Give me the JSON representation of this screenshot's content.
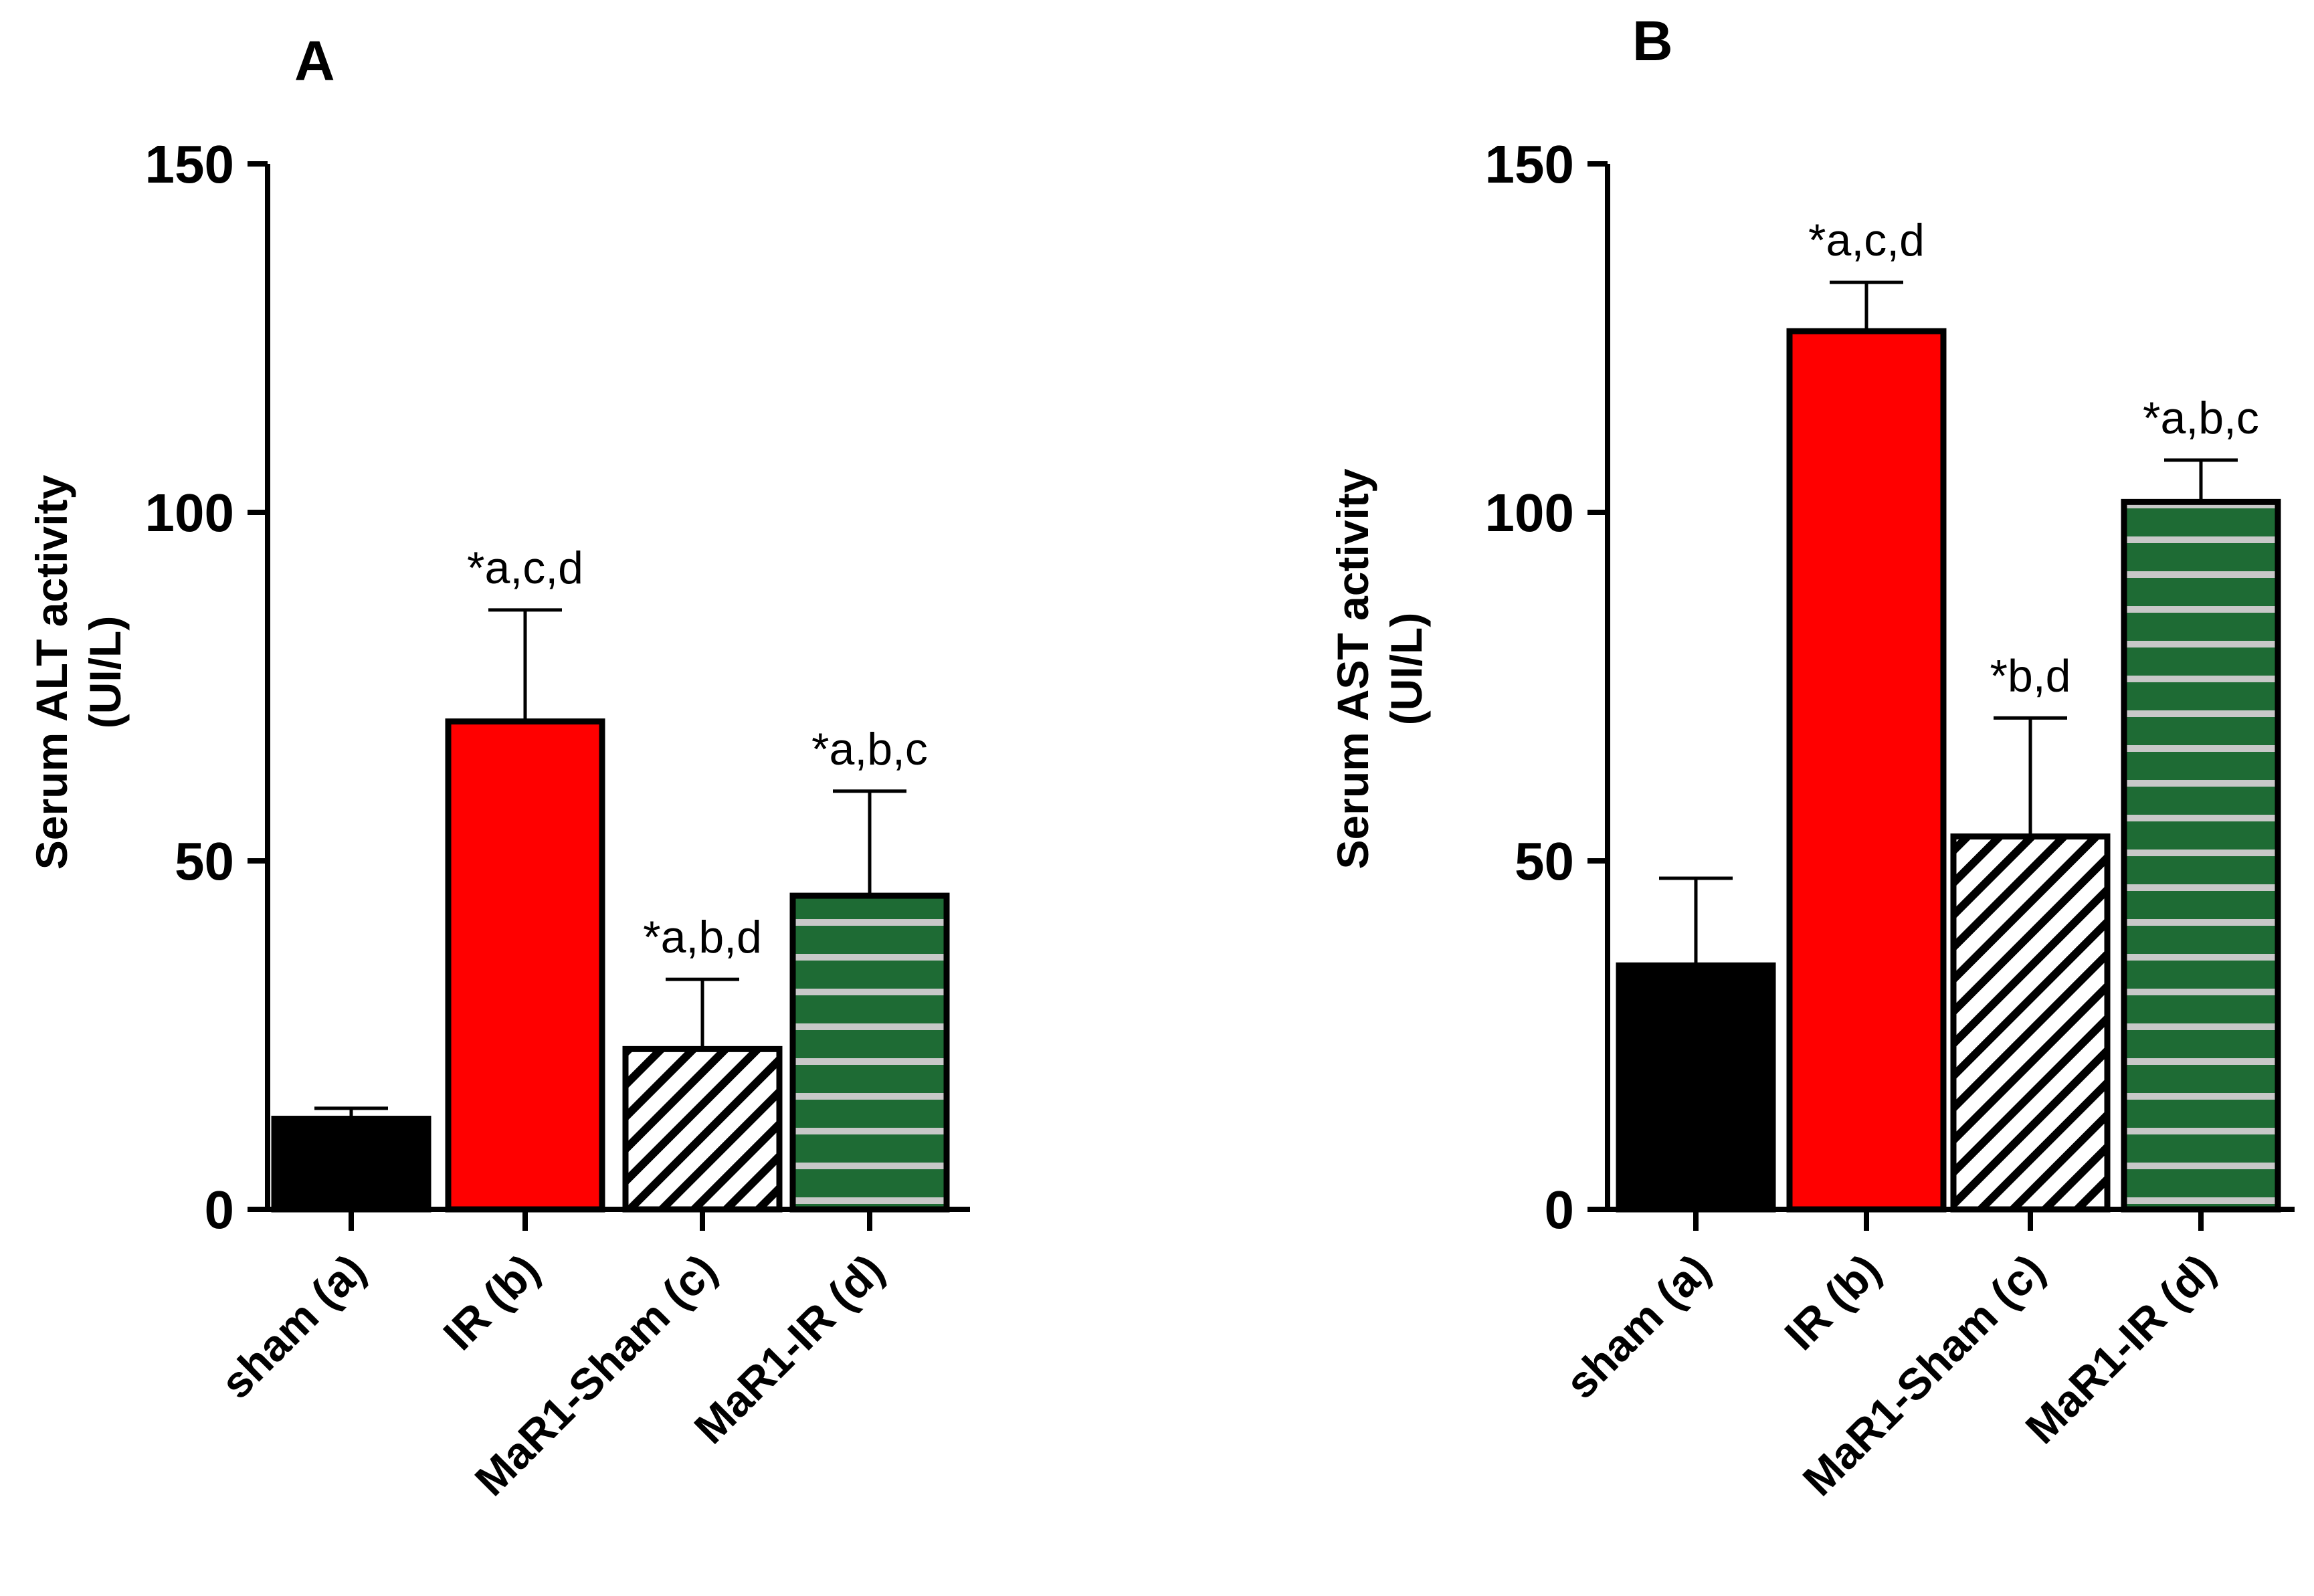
{
  "chart_data": [
    {
      "type": "bar",
      "panel": "A",
      "title": "",
      "xlabel": "",
      "ylabel": "Serum ALT activity",
      "ylabel_unit": "(UI/L)",
      "ylim": [
        0,
        150
      ],
      "yticks": [
        "0",
        "50",
        "100",
        "150"
      ],
      "categories": [
        "sham (a)",
        "IR (b)",
        "MaR1-Sham (c)",
        "MaR1-IR (d)"
      ],
      "values": [
        13,
        70,
        23,
        45
      ],
      "errors": [
        1.5,
        16,
        10,
        15
      ],
      "annotations": [
        "",
        "*a,c,d",
        "*a,b,d",
        "*a,b,c"
      ],
      "fills": [
        {
          "pattern": "solid",
          "color": "#000000"
        },
        {
          "pattern": "solid",
          "color": "#ff0000"
        },
        {
          "pattern": "diagonal-hatch",
          "color": "#000000"
        },
        {
          "pattern": "horizontal-stripes",
          "color": "#1e6b34",
          "stripe": "#c8c8c8"
        }
      ]
    },
    {
      "type": "bar",
      "panel": "B",
      "title": "",
      "xlabel": "",
      "ylabel": "Serum AST activity",
      "ylabel_unit": "(UI/L)",
      "ylim": [
        0,
        150
      ],
      "yticks": [
        "0",
        "50",
        "100",
        "150"
      ],
      "categories": [
        "sham (a)",
        "IR (b)",
        "MaR1-Sham (c)",
        "MaR1-IR (d)"
      ],
      "values": [
        35,
        126,
        53.5,
        101.5
      ],
      "errors": [
        12.5,
        7,
        17,
        6
      ],
      "annotations": [
        "",
        "*a,c,d",
        "*b,d",
        "*a,b,c"
      ],
      "fills": [
        {
          "pattern": "solid",
          "color": "#000000"
        },
        {
          "pattern": "solid",
          "color": "#ff0000"
        },
        {
          "pattern": "diagonal-hatch",
          "color": "#000000"
        },
        {
          "pattern": "horizontal-stripes",
          "color": "#1e6b34",
          "stripe": "#c8c8c8"
        }
      ]
    }
  ]
}
